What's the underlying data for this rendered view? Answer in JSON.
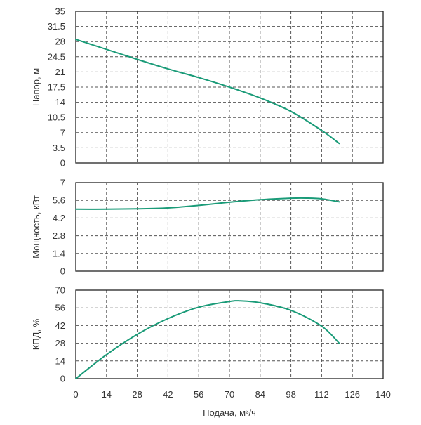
{
  "chart_data": {
    "type": "line",
    "xlabel": "Подача, м³/ч",
    "xlim": [
      0,
      140
    ],
    "xticks": [
      "0",
      "14",
      "28",
      "42",
      "56",
      "70",
      "84",
      "98",
      "112",
      "126",
      "140"
    ],
    "grid": true,
    "line_color": "#1a9b78",
    "panels": [
      {
        "ylabel": "Напор, м",
        "ylim": [
          0,
          35
        ],
        "yticks": [
          "0",
          "3.5",
          "7",
          "10.5",
          "14",
          "17.5",
          "21",
          "24.5",
          "28",
          "31.5",
          "35"
        ],
        "series": [
          {
            "x": [
              0,
              14,
              28,
              42,
              56,
              70,
              84,
              98,
              112,
              120
            ],
            "y": [
              28.5,
              26.2,
              23.9,
              21.7,
              19.7,
              17.5,
              15.0,
              11.9,
              7.5,
              4.5
            ]
          }
        ]
      },
      {
        "ylabel": "Мощность, кВт",
        "ylim": [
          0,
          7
        ],
        "yticks": [
          "0",
          "1.4",
          "2.8",
          "4.2",
          "5.6",
          "7"
        ],
        "series": [
          {
            "x": [
              0,
              14,
              28,
              42,
              56,
              70,
              84,
              98,
              105,
              112,
              120
            ],
            "y": [
              4.9,
              4.9,
              4.93,
              5.0,
              5.2,
              5.45,
              5.65,
              5.77,
              5.78,
              5.72,
              5.48
            ]
          }
        ]
      },
      {
        "ylabel": "КПД, %",
        "ylim": [
          0,
          70
        ],
        "yticks": [
          "0",
          "14",
          "28",
          "42",
          "56",
          "70"
        ],
        "series": [
          {
            "x": [
              0,
              14,
              28,
              42,
              56,
              70,
              75,
              84,
              98,
              112,
              120
            ],
            "y": [
              0,
              19,
              35,
              47.5,
              56.5,
              61,
              61.5,
              60,
              54,
              41.5,
              28
            ]
          }
        ]
      }
    ]
  }
}
